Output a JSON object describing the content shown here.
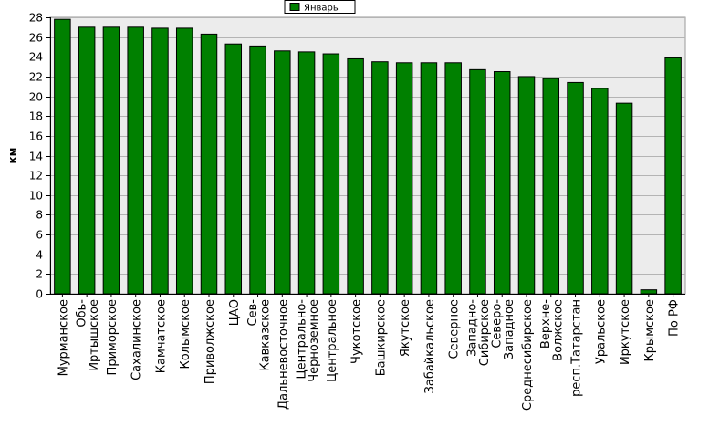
{
  "chart_data": {
    "type": "bar",
    "title": "",
    "xlabel": "",
    "ylabel": "км",
    "ylim": [
      0,
      28
    ],
    "yticks": [
      0,
      2,
      4,
      6,
      8,
      10,
      12,
      14,
      16,
      18,
      20,
      22,
      24,
      26,
      28
    ],
    "grid": true,
    "legend_position": "top-center",
    "bar_color": "#008000",
    "plot_background": "#ececec",
    "categories": [
      "Мурманское",
      "Обь-Иртышское",
      "Приморское",
      "Сахалинское",
      "Камчатское",
      "Колымское",
      "Приволжское",
      "ЦАО",
      "Сев-Кавказское",
      "Дальневосточное",
      "Центрально-Черноземное",
      "Центральное",
      "Чукотское",
      "Башкирское",
      "Якутское",
      "Забайкальское",
      "Северное",
      "Западно-Сибирское",
      "Северо-Западное",
      "Среднесибирское",
      "Верхне-Волжское",
      "респ.Татарстан",
      "Уральское",
      "Иркутское",
      "Крымское",
      "По РФ"
    ],
    "category_lines": [
      [
        "Мурманское"
      ],
      [
        "Обь-",
        "Иртышское"
      ],
      [
        "Приморское"
      ],
      [
        "Сахалинское"
      ],
      [
        "Камчатское"
      ],
      [
        "Колымское"
      ],
      [
        "Приволжское"
      ],
      [
        "ЦАО"
      ],
      [
        "Сев-",
        "Кавказское"
      ],
      [
        "Дальневосточное"
      ],
      [
        "Центрально-",
        "Черноземное"
      ],
      [
        "Центральное"
      ],
      [
        "Чукотское"
      ],
      [
        "Башкирское"
      ],
      [
        "Якутское"
      ],
      [
        "Забайкальское"
      ],
      [
        "Северное"
      ],
      [
        "Западно-",
        "Сибирское"
      ],
      [
        "Северо-",
        "Западное"
      ],
      [
        "Среднесибирское"
      ],
      [
        "Верхне-",
        "Волжское"
      ],
      [
        "респ.Татарстан"
      ],
      [
        "Уральское"
      ],
      [
        "Иркутское"
      ],
      [
        "Крымское"
      ],
      [
        "По РФ"
      ]
    ],
    "series": [
      {
        "name": "Январь",
        "values": [
          27.8,
          27.0,
          27.0,
          27.0,
          26.9,
          26.9,
          26.3,
          25.3,
          25.1,
          24.6,
          24.5,
          24.3,
          23.8,
          23.5,
          23.4,
          23.4,
          23.4,
          22.7,
          22.5,
          22.0,
          21.8,
          21.4,
          20.8,
          19.3,
          0.4,
          23.9
        ]
      }
    ]
  }
}
